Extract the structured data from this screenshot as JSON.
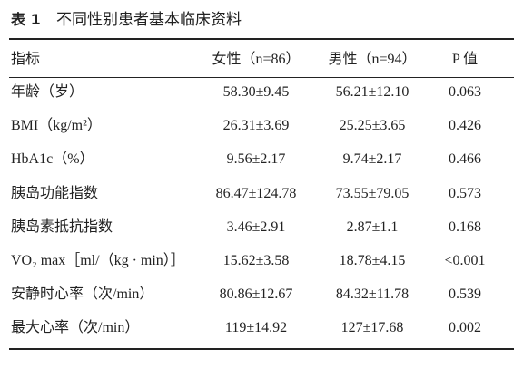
{
  "table": {
    "label": "表 1",
    "title": "不同性别患者基本临床资料",
    "header": [
      "指标",
      "女性（n=86）",
      "男性（n=94）",
      "P 值"
    ],
    "rows": [
      [
        "年龄（岁）",
        "58.30±9.45",
        "56.21±12.10",
        "0.063"
      ],
      [
        "BMI（kg/m²）",
        "26.31±3.69",
        "25.25±3.65",
        "0.426"
      ],
      [
        "HbA1c（%）",
        "9.56±2.17",
        "9.74±2.17",
        "0.466"
      ],
      [
        "胰岛功能指数",
        "86.47±124.78",
        "73.55±79.05",
        "0.573"
      ],
      [
        "胰岛素抵抗指数",
        "3.46±2.91",
        "2.87±1.1",
        "0.168"
      ],
      [
        "VO₂ max［ml/（kg · min）］",
        "15.62±3.58",
        "18.78±4.15",
        "<0.001"
      ],
      [
        "安静时心率（次/min）",
        "80.86±12.67",
        "84.32±11.78",
        "0.539"
      ],
      [
        "最大心率（次/min）",
        "119±14.92",
        "127±17.68",
        "0.002"
      ]
    ]
  }
}
